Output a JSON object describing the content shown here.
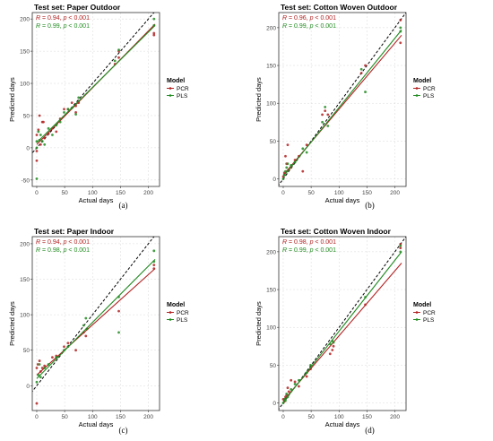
{
  "colors": {
    "pcr": "#b22222",
    "pls": "#228b22",
    "identity": "#000000",
    "grid": "#d9d9d9",
    "frame": "#333333",
    "text": "#000000"
  },
  "chart_data": [
    {
      "type": "scatter",
      "caption": "(a)",
      "title": "Test set: Paper Outdoor",
      "xlabel": "Actual days",
      "ylabel": "Predicted days",
      "xlim": [
        -8,
        220
      ],
      "ylim": [
        -60,
        210
      ],
      "xticks": [
        "0",
        "50",
        "100",
        "150",
        "200"
      ],
      "yticks": [
        "-50",
        "0",
        "50",
        "100",
        "150",
        "200"
      ],
      "stats": [
        {
          "label_r": "R",
          "r_text": " = 0.94, ",
          "label_p": "p",
          "p_text": " < 0.001",
          "color": "#b22222"
        },
        {
          "label_r": "R",
          "r_text": " = 0.99, ",
          "label_p": "p",
          "p_text": " < 0.001",
          "color": "#228b22"
        }
      ],
      "legend": {
        "title": "Model",
        "items": [
          "PCR",
          "PLS"
        ]
      },
      "series": [
        {
          "name": "PCR",
          "color": "#b22222",
          "fit": {
            "x0": 0,
            "y0": 5,
            "x1": 212,
            "y1": 192
          },
          "points": [
            [
              0,
              -20
            ],
            [
              0,
              -5
            ],
            [
              0,
              20
            ],
            [
              3,
              28
            ],
            [
              5,
              50
            ],
            [
              7,
              5
            ],
            [
              10,
              40
            ],
            [
              12,
              40
            ],
            [
              14,
              15
            ],
            [
              21,
              22
            ],
            [
              28,
              30
            ],
            [
              35,
              25
            ],
            [
              42,
              45
            ],
            [
              49,
              60
            ],
            [
              56,
              60
            ],
            [
              63,
              70
            ],
            [
              70,
              65
            ],
            [
              70,
              55
            ],
            [
              75,
              70
            ],
            [
              140,
              130
            ],
            [
              147,
              150
            ],
            [
              147,
              140
            ],
            [
              210,
              175
            ],
            [
              210,
              178
            ]
          ]
        },
        {
          "name": "PLS",
          "color": "#228b22",
          "fit": {
            "x0": 0,
            "y0": 8,
            "x1": 212,
            "y1": 190
          },
          "points": [
            [
              0,
              -48
            ],
            [
              0,
              0
            ],
            [
              0,
              10
            ],
            [
              3,
              25
            ],
            [
              5,
              12
            ],
            [
              7,
              20
            ],
            [
              10,
              10
            ],
            [
              14,
              5
            ],
            [
              21,
              30
            ],
            [
              28,
              20
            ],
            [
              35,
              35
            ],
            [
              42,
              40
            ],
            [
              49,
              55
            ],
            [
              56,
              60
            ],
            [
              63,
              62
            ],
            [
              70,
              52
            ],
            [
              75,
              78
            ],
            [
              140,
              135
            ],
            [
              147,
              152
            ],
            [
              210,
              190
            ],
            [
              210,
              200
            ]
          ]
        }
      ]
    },
    {
      "type": "scatter",
      "caption": "(b)",
      "title": "Test set: Cotton Woven Outdoor",
      "xlabel": "Actual days",
      "ylabel": "Predicted days",
      "xlim": [
        -8,
        220
      ],
      "ylim": [
        -10,
        220
      ],
      "xticks": [
        "0",
        "50",
        "100",
        "150",
        "200"
      ],
      "yticks": [
        "0",
        "50",
        "100",
        "150",
        "200"
      ],
      "stats": [
        {
          "label_r": "R",
          "r_text": " = 0.96, ",
          "label_p": "p",
          "p_text": " < 0.001",
          "color": "#b22222"
        },
        {
          "label_r": "R",
          "r_text": " = 0.99, ",
          "label_p": "p",
          "p_text": " < 0.001",
          "color": "#228b22"
        }
      ],
      "legend": {
        "title": "Model",
        "items": [
          "PCR",
          "PLS"
        ]
      },
      "series": [
        {
          "name": "PCR",
          "color": "#b22222",
          "fit": {
            "x0": 0,
            "y0": 5,
            "x1": 212,
            "y1": 190
          },
          "points": [
            [
              0,
              3
            ],
            [
              2,
              8
            ],
            [
              4,
              30
            ],
            [
              6,
              20
            ],
            [
              8,
              45
            ],
            [
              10,
              12
            ],
            [
              14,
              15
            ],
            [
              21,
              25
            ],
            [
              28,
              30
            ],
            [
              35,
              10
            ],
            [
              42,
              45
            ],
            [
              70,
              85
            ],
            [
              75,
              90
            ],
            [
              80,
              85
            ],
            [
              140,
              140
            ],
            [
              147,
              150
            ],
            [
              210,
              180
            ],
            [
              210,
              210
            ]
          ]
        },
        {
          "name": "PLS",
          "color": "#228b22",
          "fit": {
            "x0": 0,
            "y0": 3,
            "x1": 212,
            "y1": 197
          },
          "points": [
            [
              0,
              0
            ],
            [
              2,
              5
            ],
            [
              4,
              10
            ],
            [
              6,
              15
            ],
            [
              8,
              20
            ],
            [
              14,
              18
            ],
            [
              21,
              22
            ],
            [
              35,
              40
            ],
            [
              42,
              35
            ],
            [
              70,
              75
            ],
            [
              75,
              95
            ],
            [
              80,
              70
            ],
            [
              140,
              145
            ],
            [
              147,
              115
            ],
            [
              210,
              195
            ],
            [
              210,
              200
            ]
          ]
        }
      ]
    },
    {
      "type": "scatter",
      "caption": "(c)",
      "title": "Test set: Paper Indoor",
      "xlabel": "Actual days",
      "ylabel": "Predicted days",
      "xlim": [
        -8,
        220
      ],
      "ylim": [
        -35,
        210
      ],
      "xticks": [
        "0",
        "50",
        "100",
        "150",
        "200"
      ],
      "yticks": [
        "0",
        "50",
        "100",
        "150",
        "200"
      ],
      "stats": [
        {
          "label_r": "R",
          "r_text": " = 0.94, ",
          "label_p": "p",
          "p_text": " < 0.001",
          "color": "#b22222"
        },
        {
          "label_r": "R",
          "r_text": " = 0.98, ",
          "label_p": "p",
          "p_text": " < 0.001",
          "color": "#228b22"
        }
      ],
      "legend": {
        "title": "Model",
        "items": [
          "PCR",
          "PLS"
        ]
      },
      "series": [
        {
          "name": "PCR",
          "color": "#b22222",
          "fit": {
            "x0": 0,
            "y0": 15,
            "x1": 212,
            "y1": 165
          },
          "points": [
            [
              0,
              -25
            ],
            [
              0,
              25
            ],
            [
              2,
              30
            ],
            [
              5,
              35
            ],
            [
              7,
              20
            ],
            [
              10,
              25
            ],
            [
              14,
              28
            ],
            [
              28,
              40
            ],
            [
              35,
              42
            ],
            [
              49,
              55
            ],
            [
              56,
              60
            ],
            [
              70,
              50
            ],
            [
              84,
              75
            ],
            [
              88,
              70
            ],
            [
              90,
              80
            ],
            [
              147,
              105
            ],
            [
              210,
              165
            ],
            [
              210,
              170
            ]
          ]
        },
        {
          "name": "PLS",
          "color": "#228b22",
          "fit": {
            "x0": 0,
            "y0": 10,
            "x1": 212,
            "y1": 178
          },
          "points": [
            [
              0,
              5
            ],
            [
              3,
              15
            ],
            [
              5,
              30
            ],
            [
              7,
              12
            ],
            [
              14,
              25
            ],
            [
              21,
              30
            ],
            [
              35,
              40
            ],
            [
              49,
              50
            ],
            [
              56,
              55
            ],
            [
              84,
              85
            ],
            [
              88,
              95
            ],
            [
              90,
              80
            ],
            [
              147,
              75
            ],
            [
              147,
              125
            ],
            [
              210,
              175
            ],
            [
              210,
              190
            ]
          ]
        }
      ]
    },
    {
      "type": "scatter",
      "caption": "(d)",
      "title": "Test set: Cotton Woven Indoor",
      "xlabel": "Actual days",
      "ylabel": "Predicted days",
      "xlim": [
        -8,
        220
      ],
      "ylim": [
        -10,
        220
      ],
      "xticks": [
        "0",
        "50",
        "100",
        "150",
        "200"
      ],
      "yticks": [
        "0",
        "50",
        "100",
        "150",
        "200"
      ],
      "stats": [
        {
          "label_r": "R",
          "r_text": " = 0.98, ",
          "label_p": "p",
          "p_text": " < 0.001",
          "color": "#b22222"
        },
        {
          "label_r": "R",
          "r_text": " = 0.99, ",
          "label_p": "p",
          "p_text": " < 0.001",
          "color": "#228b22"
        }
      ],
      "legend": {
        "title": "Model",
        "items": [
          "PCR",
          "PLS"
        ]
      },
      "series": [
        {
          "name": "PCR",
          "color": "#b22222",
          "fit": {
            "x0": 0,
            "y0": 3,
            "x1": 212,
            "y1": 185
          },
          "points": [
            [
              0,
              5
            ],
            [
              2,
              2
            ],
            [
              4,
              8
            ],
            [
              6,
              10
            ],
            [
              8,
              20
            ],
            [
              10,
              15
            ],
            [
              14,
              30
            ],
            [
              21,
              28
            ],
            [
              28,
              22
            ],
            [
              42,
              35
            ],
            [
              49,
              45
            ],
            [
              84,
              65
            ],
            [
              88,
              70
            ],
            [
              90,
              75
            ],
            [
              147,
              130
            ],
            [
              210,
              205
            ],
            [
              210,
              210
            ]
          ]
        },
        {
          "name": "PLS",
          "color": "#228b22",
          "fit": {
            "x0": 0,
            "y0": 1,
            "x1": 212,
            "y1": 200
          },
          "points": [
            [
              0,
              0
            ],
            [
              2,
              5
            ],
            [
              4,
              3
            ],
            [
              6,
              12
            ],
            [
              8,
              8
            ],
            [
              14,
              18
            ],
            [
              21,
              25
            ],
            [
              28,
              30
            ],
            [
              42,
              40
            ],
            [
              49,
              50
            ],
            [
              84,
              78
            ],
            [
              88,
              82
            ],
            [
              90,
              80
            ],
            [
              147,
              140
            ],
            [
              210,
              200
            ],
            [
              210,
              208
            ]
          ]
        }
      ]
    }
  ]
}
